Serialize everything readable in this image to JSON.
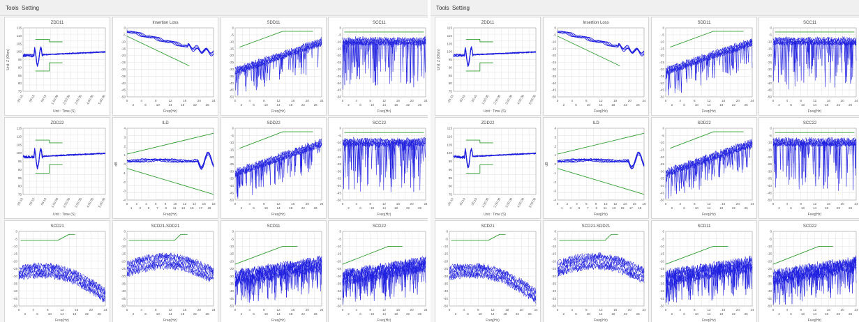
{
  "windows": [
    {
      "menu": [
        {
          "label": "Tools"
        },
        {
          "label": "Setting"
        }
      ],
      "charts": [
        {
          "title": "ZDD11",
          "kind": "tdr",
          "ylabel": "Unit: Z (Ohm)",
          "xlabel": "Unit : Time (S)",
          "seed": 11
        },
        {
          "title": "Insertion Loss",
          "kind": "il",
          "xlabel": "Freq(Hz)",
          "seed": 12
        },
        {
          "title": "SDD11",
          "kind": "rl",
          "xlabel": "Freq(Hz)",
          "seed": 13
        },
        {
          "title": "SCC11",
          "kind": "scc",
          "xlabel": "Freq(Hz)",
          "seed": 14
        },
        {
          "title": "ZDD22",
          "kind": "tdr",
          "ylabel": "",
          "xlabel": "Unit : Time (S)",
          "seed": 21
        },
        {
          "title": "ILD",
          "kind": "ild",
          "ylabel": "dB",
          "xlabel": "Freq(Hz)",
          "seed": 22
        },
        {
          "title": "SDD22",
          "kind": "rl",
          "xlabel": "Freq(Hz)",
          "seed": 23
        },
        {
          "title": "SCC22",
          "kind": "scc",
          "xlabel": "Freq(Hz)",
          "seed": 24
        },
        {
          "title": "SCD21",
          "kind": "scd21",
          "xlabel": "Freq(Hz)",
          "seed": 31
        },
        {
          "title": "SCD21-SDD21",
          "kind": "scdsdd",
          "xlabel": "Freq(Hz)",
          "seed": 32
        },
        {
          "title": "SCD11",
          "kind": "scd",
          "xlabel": "Freq(Hz)",
          "seed": 33
        },
        {
          "title": "SCD22",
          "kind": "scd",
          "xlabel": "Freq(Hz)",
          "seed": 34
        }
      ]
    },
    {
      "menu": [
        {
          "label": "Tools"
        },
        {
          "label": "Setting"
        }
      ],
      "charts": [
        {
          "title": "ZDD11",
          "kind": "tdr",
          "ylabel": "Unit: Z (Ohm)",
          "xlabel": "Unit : Time (S)",
          "seed": 41
        },
        {
          "title": "Insertion Loss",
          "kind": "il",
          "xlabel": "Freq(Hz)",
          "seed": 42
        },
        {
          "title": "SDD11",
          "kind": "rl",
          "xlabel": "Freq(Hz)",
          "seed": 43
        },
        {
          "title": "SCC11",
          "kind": "scc",
          "xlabel": "Freq(Hz)",
          "seed": 44
        },
        {
          "title": "ZDD22",
          "kind": "tdr",
          "ylabel": "",
          "xlabel": "Unit : Time (S)",
          "seed": 51
        },
        {
          "title": "ILD",
          "kind": "ild",
          "ylabel": "dB",
          "xlabel": "Freq(Hz)",
          "seed": 52
        },
        {
          "title": "SDD22",
          "kind": "rl",
          "xlabel": "Freq(Hz)",
          "seed": 53
        },
        {
          "title": "SCC22",
          "kind": "scc",
          "xlabel": "Freq(Hz)",
          "seed": 54
        },
        {
          "title": "SCD21",
          "kind": "scd21",
          "xlabel": "Freq(Hz)",
          "seed": 61
        },
        {
          "title": "SCD21-SDD21",
          "kind": "scdsdd",
          "xlabel": "Freq(Hz)",
          "seed": 62
        },
        {
          "title": "SCD11",
          "kind": "scd",
          "xlabel": "Freq(Hz)",
          "seed": 63
        },
        {
          "title": "SCD22",
          "kind": "scd",
          "xlabel": "Freq(Hz)",
          "seed": 64
        }
      ]
    }
  ],
  "colors": {
    "trace": "#1f1fe0",
    "limit": "#2e9e2e",
    "grid": "#e2e2e2",
    "axis": "#9a9a9a"
  },
  "axes": {
    "tdr_y_ticks": [
      "115",
      "110",
      "105",
      "100",
      "95",
      "90",
      "85",
      "80",
      "75"
    ],
    "tdr_x_ticks_row1": [
      "-26.10",
      "00.10",
      "00.10",
      "1.00.00",
      "2.00.00",
      "3.00.00",
      "4.00.00",
      "5.00.00"
    ],
    "tdr_x_ticks_row2": [
      "-26.10",
      "00.10",
      "1.00.00",
      "2.00.00",
      "3.00.00",
      "4.00.00"
    ],
    "tdr_x_ticks_row2_b": [
      "30.10",
      "1.00.00",
      "2.00.00",
      "3.00.00",
      "4.00.00"
    ],
    "freq_ticks_top": [
      "0",
      "4",
      "8",
      "12",
      "16",
      "20",
      "24"
    ],
    "freq_ticks_bottom": [
      "2",
      "6",
      "10",
      "14",
      "18",
      "22",
      "26"
    ],
    "ild_ticks_top": [
      "0",
      "2",
      "4",
      "6",
      "8",
      "10",
      "12",
      "14",
      "16",
      "18"
    ],
    "ild_ticks_bottom": [
      "1",
      "3",
      "5",
      "7",
      "9",
      "11",
      "13",
      "15",
      "17",
      "19"
    ],
    "ild_y_ticks": [
      "4",
      "3",
      "2",
      "1",
      "0",
      "-1",
      "-2",
      "-3",
      "-4"
    ],
    "neg_y_ticks": [
      "0",
      "-5",
      "-10",
      "-15",
      "-20",
      "-25",
      "-30",
      "-35",
      "-40",
      "-45",
      "-50"
    ]
  },
  "chart_data": [
    {
      "type": "line",
      "title": "ZDD11",
      "ylabel": "Unit: Z (Ohm)",
      "xlabel": "Unit : Time (S)",
      "ylim": [
        75,
        115
      ],
      "series": [
        {
          "x": [
            0,
            0.1,
            0.2,
            0.3,
            1,
            2,
            3,
            4
          ],
          "y": [
            100,
            101,
            96,
            103,
            101,
            102,
            103,
            103
          ]
        }
      ]
    },
    {
      "type": "line",
      "title": "Insertion Loss",
      "xlabel": "Freq(Hz)",
      "xlim": [
        0,
        26
      ],
      "ylim": [
        -50,
        0
      ],
      "series": [
        {
          "x": [
            0,
            4,
            8,
            12,
            16,
            20,
            24,
            26
          ],
          "y": [
            -1,
            -4,
            -6,
            -9,
            -12,
            -15,
            -17,
            -20
          ]
        }
      ]
    },
    {
      "type": "line",
      "title": "SDD11",
      "xlabel": "Freq(Hz)",
      "xlim": [
        0,
        26
      ],
      "ylim": [
        -50,
        0
      ]
    },
    {
      "type": "line",
      "title": "SCC11",
      "xlabel": "Freq(Hz)",
      "xlim": [
        0,
        26
      ],
      "ylim": [
        -50,
        0
      ]
    },
    {
      "type": "line",
      "title": "ZDD22",
      "xlabel": "Unit : Time (S)",
      "ylim": [
        75,
        115
      ]
    },
    {
      "type": "line",
      "title": "ILD",
      "ylabel": "dB",
      "xlabel": "Freq(Hz)",
      "xlim": [
        0,
        19
      ],
      "ylim": [
        -4,
        4
      ]
    },
    {
      "type": "line",
      "title": "SDD22",
      "xlabel": "Freq(Hz)",
      "xlim": [
        0,
        26
      ],
      "ylim": [
        -50,
        0
      ]
    },
    {
      "type": "line",
      "title": "SCC22",
      "xlabel": "Freq(Hz)",
      "xlim": [
        0,
        26
      ],
      "ylim": [
        -50,
        0
      ]
    },
    {
      "type": "line",
      "title": "SCD21",
      "xlabel": "Freq(Hz)",
      "xlim": [
        0,
        26
      ],
      "ylim": [
        -50,
        0
      ]
    },
    {
      "type": "line",
      "title": "SCD21-SDD21",
      "xlabel": "Freq(Hz)",
      "xlim": [
        0,
        26
      ],
      "ylim": [
        -50,
        0
      ]
    },
    {
      "type": "line",
      "title": "SCD11",
      "xlabel": "Freq(Hz)",
      "xlim": [
        0,
        26
      ],
      "ylim": [
        -50,
        0
      ]
    },
    {
      "type": "line",
      "title": "SCD22",
      "xlabel": "Freq(Hz)",
      "xlim": [
        0,
        26
      ],
      "ylim": [
        -50,
        0
      ]
    }
  ]
}
